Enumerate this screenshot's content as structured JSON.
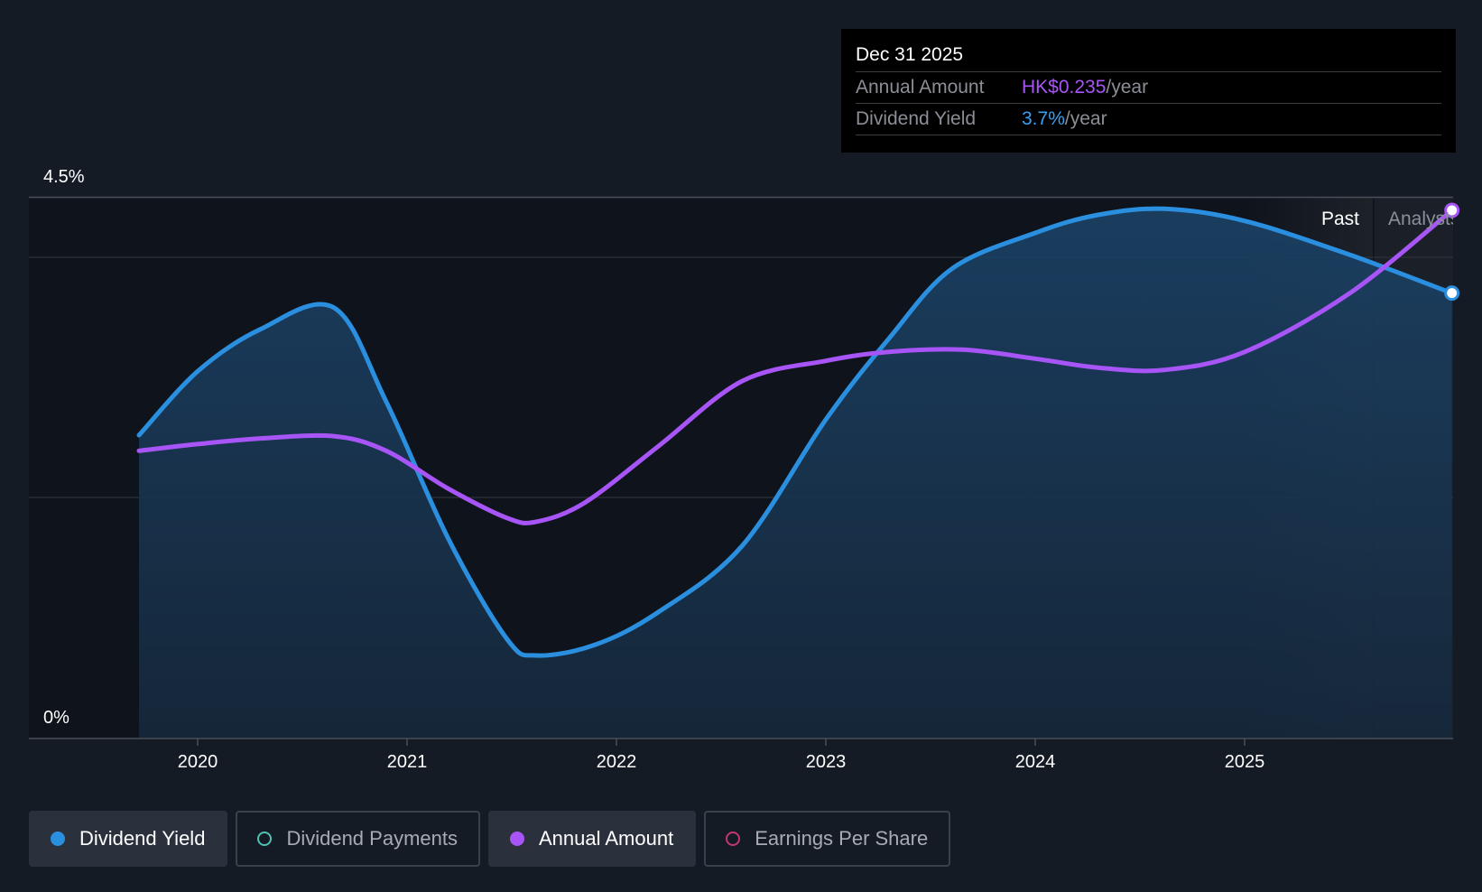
{
  "tooltip": {
    "date": "Dec 31 2025",
    "rows": [
      {
        "label": "Annual Amount",
        "value": "HK$0.235",
        "unit": "/year"
      },
      {
        "label": "Dividend Yield",
        "value": "3.7%",
        "unit": "/year"
      }
    ]
  },
  "legend": [
    {
      "label": "Dividend Yield",
      "color": "#2b8fe0",
      "active": true
    },
    {
      "label": "Dividend Payments",
      "color": "#4fc1b3",
      "active": false
    },
    {
      "label": "Annual Amount",
      "color": "#a855f7",
      "active": true
    },
    {
      "label": "Earnings Per Share",
      "color": "#c2386e",
      "active": false
    }
  ],
  "chart_data": {
    "type": "line",
    "y_axis_labels": [
      "4.5%",
      "0%"
    ],
    "ylim": [
      0,
      4.5
    ],
    "xlim": [
      2019.45,
      2025.99
    ],
    "x_ticks": [
      "2020",
      "2021",
      "2022",
      "2023",
      "2024",
      "2025"
    ],
    "region_labels": {
      "past": "Past",
      "forecast": "Analysts"
    },
    "forecast_start": 2025.62,
    "series": [
      {
        "name": "Dividend Yield",
        "color": "#2b8fe0",
        "unit": "%",
        "points": [
          [
            2019.72,
            2.52
          ],
          [
            2020.0,
            3.05
          ],
          [
            2020.3,
            3.4
          ],
          [
            2020.65,
            3.58
          ],
          [
            2020.9,
            2.8
          ],
          [
            2021.2,
            1.65
          ],
          [
            2021.48,
            0.82
          ],
          [
            2021.62,
            0.69
          ],
          [
            2021.9,
            0.78
          ],
          [
            2022.2,
            1.05
          ],
          [
            2022.6,
            1.6
          ],
          [
            2023.0,
            2.65
          ],
          [
            2023.3,
            3.32
          ],
          [
            2023.6,
            3.9
          ],
          [
            2024.0,
            4.2
          ],
          [
            2024.3,
            4.35
          ],
          [
            2024.62,
            4.4
          ],
          [
            2025.0,
            4.3
          ],
          [
            2025.5,
            4.02
          ],
          [
            2025.99,
            3.7
          ]
        ]
      },
      {
        "name": "Annual Amount",
        "color": "#a855f7",
        "unit": "HK$",
        "ylim": [
          0,
          0.241
        ],
        "points": [
          [
            2019.72,
            0.128
          ],
          [
            2020.0,
            0.131
          ],
          [
            2020.3,
            0.1335
          ],
          [
            2020.65,
            0.1345
          ],
          [
            2020.9,
            0.128
          ],
          [
            2021.2,
            0.111
          ],
          [
            2021.48,
            0.098
          ],
          [
            2021.62,
            0.0965
          ],
          [
            2021.85,
            0.105
          ],
          [
            2022.2,
            0.13
          ],
          [
            2022.6,
            0.159
          ],
          [
            2023.0,
            0.168
          ],
          [
            2023.3,
            0.172
          ],
          [
            2023.65,
            0.173
          ],
          [
            2024.0,
            0.169
          ],
          [
            2024.3,
            0.165
          ],
          [
            2024.62,
            0.164
          ],
          [
            2025.0,
            0.172
          ],
          [
            2025.5,
            0.198
          ],
          [
            2025.99,
            0.235
          ]
        ]
      }
    ]
  }
}
